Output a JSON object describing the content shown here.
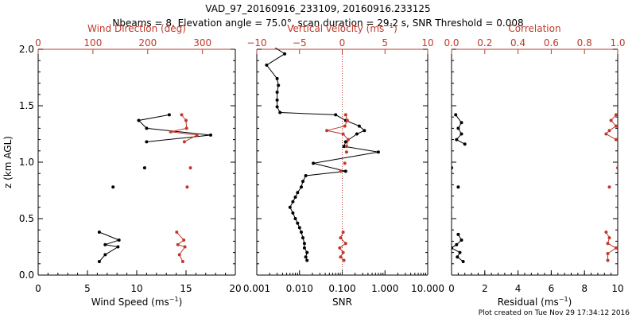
{
  "title_line1": "VAD_97_20160916_233109, 20160916.233125",
  "title_line2": "Nbeams = 8, Elevation angle = 75.0°, scan duration = 29.2 s, SNR Threshold = 0.008",
  "footer": "Plot created on Tue Nov 29 17:34:12 2016",
  "colors": {
    "black": "#000000",
    "red": "#c0392b"
  },
  "chart_data": [
    {
      "type": "line",
      "panel": "wind",
      "ylabel": "z (km AGL)",
      "ylim": [
        0.0,
        2.0
      ],
      "y_ticks": [
        "0.0",
        "0.5",
        "1.0",
        "1.5",
        "2.0"
      ],
      "bottom_axis": {
        "label_main": "Wind Speed (ms",
        "label_sup": "−1",
        "label_close": ")",
        "range": [
          0,
          20
        ],
        "ticks": [
          "0",
          "5",
          "10",
          "15",
          "20"
        ]
      },
      "top_axis": {
        "label": "Wind Direction (deg)",
        "range": [
          0,
          360
        ],
        "ticks": [
          "0",
          "100",
          "200",
          "300"
        ],
        "tick_values": [
          0,
          100,
          200,
          300
        ]
      },
      "series": [
        {
          "color": "#000000",
          "segments": [
            [
              [
                13.3,
                1.42
              ],
              [
                10.2,
                1.37
              ],
              [
                11.0,
                1.3
              ],
              [
                17.5,
                1.24
              ],
              [
                11.0,
                1.18
              ]
            ],
            [
              [
                10.8,
                0.95
              ]
            ],
            [
              [
                7.6,
                0.78
              ]
            ],
            [
              [
                6.2,
                0.38
              ],
              [
                8.2,
                0.31
              ],
              [
                6.8,
                0.27
              ],
              [
                8.1,
                0.25
              ],
              [
                6.8,
                0.18
              ],
              [
                6.2,
                0.12
              ]
            ]
          ]
        },
        {
          "color": "#c0392b",
          "segments": [
            [
              [
                262,
                1.42
              ],
              [
                270,
                1.37
              ],
              [
                271,
                1.3
              ],
              [
                242,
                1.27
              ],
              [
                290,
                1.24
              ],
              [
                267,
                1.18
              ]
            ],
            [
              [
                278,
                0.95
              ]
            ],
            [
              [
                272,
                0.78
              ]
            ],
            [
              [
                253,
                0.38
              ],
              [
                266,
                0.31
              ],
              [
                255,
                0.27
              ],
              [
                268,
                0.25
              ],
              [
                258,
                0.18
              ],
              [
                264,
                0.12
              ]
            ]
          ]
        }
      ]
    },
    {
      "type": "line",
      "panel": "snr",
      "ylim": [
        0.0,
        2.0
      ],
      "bottom_axis": {
        "label": "SNR",
        "scale": "log",
        "range": [
          0.001,
          10.0
        ],
        "ticks": [
          "0.001",
          "0.010",
          "0.100",
          "1.000",
          "10.000"
        ],
        "tick_values": [
          0.001,
          0.01,
          0.1,
          1.0,
          10.0
        ]
      },
      "top_axis": {
        "label_main": "Vertical velocity (ms",
        "label_sup": "−1",
        "label_close": ")",
        "range": [
          -10,
          10
        ],
        "ticks": [
          "−10",
          "−5",
          "0",
          "5",
          "10"
        ],
        "tick_values": [
          -10,
          -5,
          0,
          5,
          10
        ]
      },
      "reference_line": {
        "axis": "top",
        "value": 0,
        "style": "dotted"
      },
      "series": [
        {
          "color": "#000000",
          "segments": [
            [
              [
                0.0021,
                2.04
              ],
              [
                0.0045,
                1.96
              ],
              [
                0.0017,
                1.86
              ],
              [
                0.003,
                1.74
              ],
              [
                0.0032,
                1.68
              ],
              [
                0.003,
                1.62
              ],
              [
                0.003,
                1.55
              ],
              [
                0.003,
                1.49
              ],
              [
                0.0035,
                1.44
              ],
              [
                0.07,
                1.42
              ],
              [
                0.12,
                1.37
              ],
              [
                0.25,
                1.32
              ],
              [
                0.33,
                1.28
              ],
              [
                0.22,
                1.25
              ],
              [
                0.12,
                1.18
              ],
              [
                0.11,
                1.14
              ],
              [
                0.7,
                1.09
              ],
              [
                0.021,
                0.99
              ],
              [
                0.12,
                0.92
              ],
              [
                0.014,
                0.88
              ],
              [
                0.012,
                0.83
              ],
              [
                0.011,
                0.78
              ],
              [
                0.009,
                0.73
              ],
              [
                0.008,
                0.69
              ],
              [
                0.007,
                0.65
              ],
              [
                0.006,
                0.6
              ],
              [
                0.007,
                0.55
              ],
              [
                0.008,
                0.5
              ],
              [
                0.009,
                0.46
              ],
              [
                0.01,
                0.42
              ],
              [
                0.011,
                0.38
              ],
              [
                0.012,
                0.33
              ],
              [
                0.013,
                0.28
              ],
              [
                0.013,
                0.24
              ],
              [
                0.015,
                0.2
              ],
              [
                0.014,
                0.16
              ],
              [
                0.015,
                0.13
              ]
            ]
          ]
        },
        {
          "color": "#c0392b",
          "segments": [
            [
              [
                0.4,
                1.42
              ],
              [
                0.6,
                1.37
              ],
              [
                0.3,
                1.32
              ],
              [
                -1.8,
                1.28
              ],
              [
                0.1,
                1.25
              ],
              [
                0.7,
                1.2
              ],
              [
                0.5,
                1.14
              ]
            ],
            [
              [
                0.5,
                1.09
              ]
            ],
            [
              [
                0.3,
                0.99
              ]
            ],
            [
              [
                -0.2,
                0.92
              ]
            ],
            [
              [
                0.1,
                0.38
              ],
              [
                -0.2,
                0.33
              ],
              [
                0.4,
                0.28
              ],
              [
                -0.3,
                0.24
              ],
              [
                0.1,
                0.2
              ],
              [
                -0.2,
                0.16
              ],
              [
                0.2,
                0.13
              ]
            ]
          ]
        }
      ]
    },
    {
      "type": "line",
      "panel": "residual",
      "ylim": [
        0.0,
        2.0
      ],
      "bottom_axis": {
        "label_main": "Residual (ms",
        "label_sup": "−1",
        "label_close": ")",
        "range": [
          0,
          10
        ],
        "ticks": [
          "0",
          "2",
          "4",
          "6",
          "8",
          "10"
        ]
      },
      "top_axis": {
        "label": "Correlation",
        "range": [
          0.0,
          1.0
        ],
        "ticks": [
          "0.0",
          "0.2",
          "0.4",
          "0.6",
          "0.8",
          "1.0"
        ],
        "tick_values": [
          0.0,
          0.2,
          0.4,
          0.6,
          0.8,
          1.0
        ]
      },
      "series": [
        {
          "color": "#000000",
          "segments": [
            [
              [
                0.25,
                1.42
              ],
              [
                0.6,
                1.35
              ],
              [
                0.4,
                1.3
              ],
              [
                0.6,
                1.25
              ],
              [
                0.3,
                1.2
              ],
              [
                0.8,
                1.16
              ]
            ],
            [
              [
                0.0,
                0.95
              ]
            ],
            [
              [
                0.4,
                0.78
              ]
            ],
            [
              [
                0.4,
                0.36
              ],
              [
                0.6,
                0.31
              ],
              [
                0.3,
                0.27
              ],
              [
                0.0,
                0.24
              ],
              [
                0.5,
                0.2
              ],
              [
                0.35,
                0.16
              ],
              [
                0.7,
                0.12
              ]
            ]
          ]
        },
        {
          "color": "#c0392b",
          "segments": [
            [
              [
                0.99,
                1.42
              ],
              [
                0.96,
                1.37
              ],
              [
                0.99,
                1.32
              ],
              [
                0.95,
                1.28
              ],
              [
                0.93,
                1.25
              ],
              [
                0.99,
                1.2
              ]
            ],
            [
              [
                1.0,
                0.95
              ]
            ],
            [
              [
                0.95,
                0.78
              ]
            ],
            [
              [
                0.93,
                0.38
              ],
              [
                0.95,
                0.33
              ],
              [
                0.94,
                0.28
              ],
              [
                0.99,
                0.24
              ],
              [
                0.94,
                0.19
              ],
              [
                0.94,
                0.13
              ]
            ]
          ]
        }
      ]
    }
  ]
}
